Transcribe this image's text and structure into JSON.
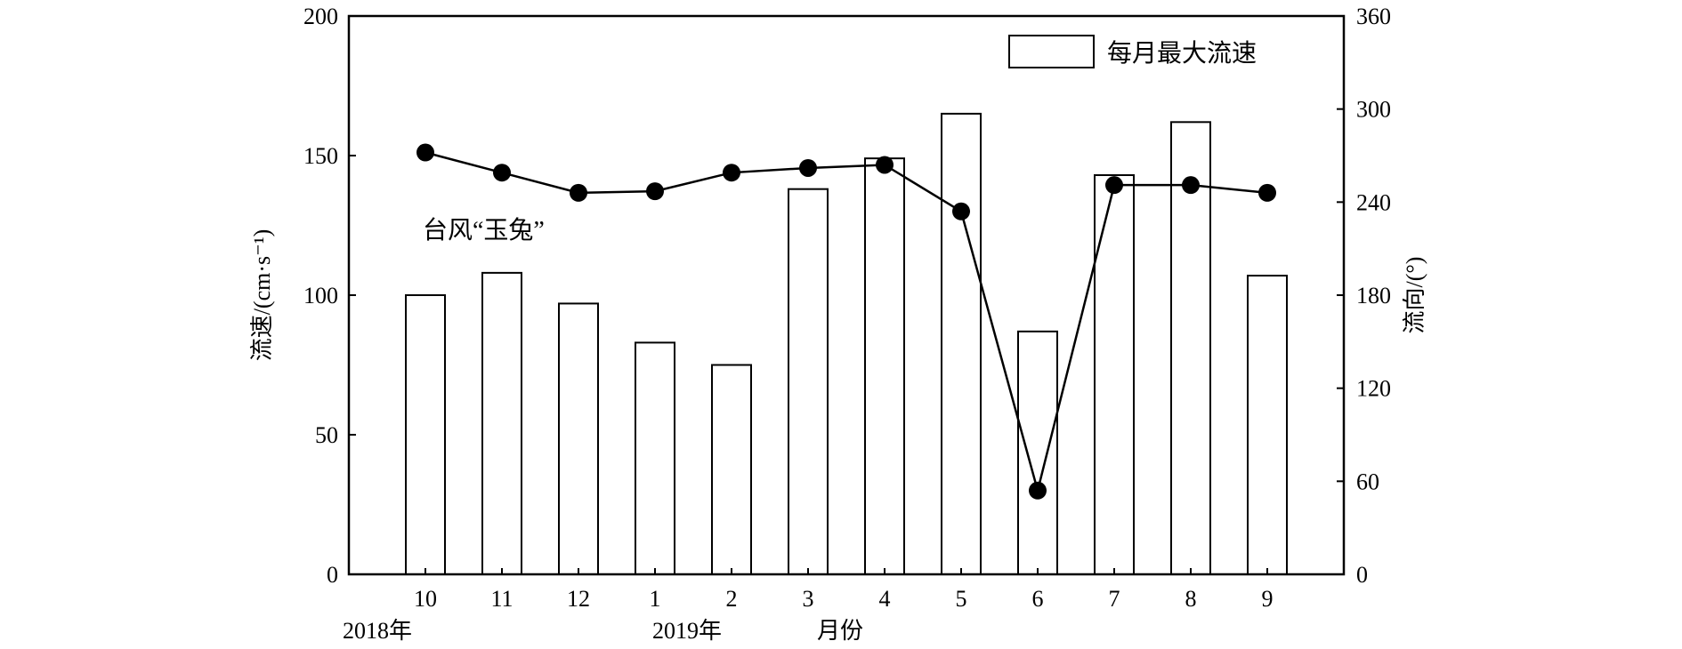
{
  "chart_data": {
    "type": "bar",
    "categories": [
      "10",
      "11",
      "12",
      "1",
      "2",
      "3",
      "4",
      "5",
      "6",
      "7",
      "8",
      "9"
    ],
    "series": [
      {
        "name": "每月最大流速",
        "type": "bar",
        "axis": "left",
        "values": [
          100,
          108,
          97,
          83,
          75,
          138,
          149,
          165,
          87,
          143,
          162,
          107
        ]
      },
      {
        "name": "",
        "type": "line",
        "axis": "right",
        "values": [
          272,
          259,
          246,
          247,
          259,
          262,
          264,
          234,
          54,
          251,
          251,
          246
        ]
      }
    ],
    "ylabel": "流速/(cm·s⁻¹)",
    "y2label": "流向/(°)",
    "xlabel": "月份",
    "year_labels": [
      "2018年",
      "2019年"
    ],
    "annotation": "台风“玉兔”",
    "ylim": [
      0,
      200
    ],
    "y2lim": [
      0,
      360
    ],
    "yticks": [
      "0",
      "50",
      "100",
      "150",
      "200"
    ],
    "y2ticks": [
      "0",
      "60",
      "120",
      "180",
      "240",
      "300",
      "360"
    ],
    "legend": "top-right",
    "grid": false
  }
}
